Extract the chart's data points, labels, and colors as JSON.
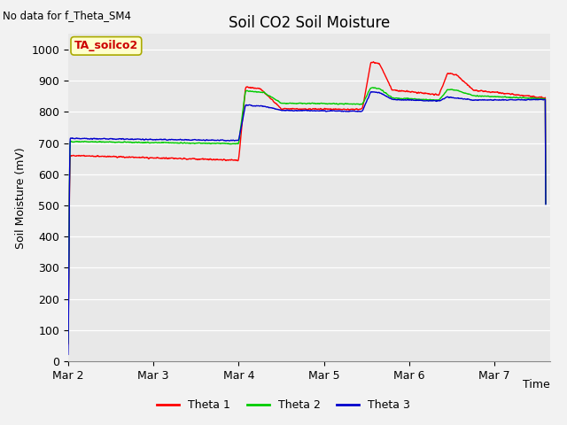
{
  "title": "Soil CO2 Soil Moisture",
  "ylabel": "Soil Moisture (mV)",
  "xlabel": "Time",
  "no_data_text": "No data for f_Theta_SM4",
  "annotation_text": "TA_soilco2",
  "ylim": [
    0,
    1050
  ],
  "yticks": [
    0,
    100,
    200,
    300,
    400,
    500,
    600,
    700,
    800,
    900,
    1000
  ],
  "figure_bg": "#f2f2f2",
  "axes_bg": "#e8e8e8",
  "line_colors": [
    "#ff0000",
    "#00cc00",
    "#0000cc"
  ],
  "legend_labels": [
    "Theta 1",
    "Theta 2",
    "Theta 3"
  ],
  "x_tick_labels": [
    "Mar 2",
    "Mar 3",
    "Mar 4",
    "Mar 5",
    "Mar 6",
    "Mar 7"
  ],
  "title_fontsize": 12,
  "axis_fontsize": 9,
  "tick_fontsize": 9
}
